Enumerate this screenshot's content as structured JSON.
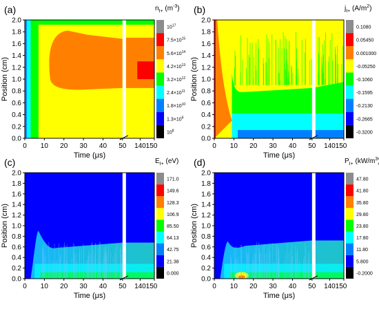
{
  "chart_data": [
    {
      "type": "heatmap",
      "panel_label": "(a)",
      "quantity_main": "n",
      "quantity_sub": "I+",
      "unit_text": " (m",
      "unit_sup": "-3",
      "unit_close": ")",
      "xlabel": "Time (μs)",
      "ylabel": "Position (cm)",
      "x_ticks_left": [
        "0",
        "10",
        "20",
        "30",
        "40",
        "50"
      ],
      "x_ticks_right": [
        "140",
        "150"
      ],
      "xlim_left": [
        0,
        50
      ],
      "xlim_right": [
        130,
        150
      ],
      "ylim": [
        0,
        2.0
      ],
      "y_ticks": [
        "0.0",
        "0.2",
        "0.4",
        "0.6",
        "0.8",
        "1.0",
        "1.2",
        "1.4",
        "1.6",
        "1.8",
        "2.0"
      ],
      "colorbar_labels": [
        {
          "m": "10",
          "e": "17"
        },
        {
          "m": "7.5×10",
          "e": "15"
        },
        {
          "m": "5.6×10",
          "e": "14"
        },
        {
          "m": "4.2×10",
          "e": "13"
        },
        {
          "m": "3.2×10",
          "e": "12"
        },
        {
          "m": "2.4×10",
          "e": "11"
        },
        {
          "m": "1.8×10",
          "e": "10"
        },
        {
          "m": "1.3×10",
          "e": "9"
        },
        {
          "m": "10",
          "e": "8"
        }
      ]
    },
    {
      "type": "heatmap",
      "panel_label": "(b)",
      "quantity_main": "j",
      "quantity_sub": "I+",
      "unit_text": " (A/m",
      "unit_sup": "2",
      "unit_close": ")",
      "xlabel": "Time (μs)",
      "ylabel": "Position (cm)",
      "x_ticks_left": [
        "0",
        "10",
        "20",
        "30",
        "40",
        "50"
      ],
      "x_ticks_right": [
        "140",
        "150"
      ],
      "xlim_left": [
        0,
        50
      ],
      "xlim_right": [
        130,
        150
      ],
      "ylim": [
        0,
        2.0
      ],
      "y_ticks": [
        "0.0",
        "0.2",
        "0.4",
        "0.6",
        "0.8",
        "1.0",
        "1.2",
        "1.4",
        "1.6",
        "1.8",
        "2.0"
      ],
      "colorbar_labels": [
        {
          "m": "0.1080",
          "e": ""
        },
        {
          "m": "0.05450",
          "e": ""
        },
        {
          "m": "0.001000",
          "e": ""
        },
        {
          "m": "-0.05250",
          "e": ""
        },
        {
          "m": "-0.1060",
          "e": ""
        },
        {
          "m": "-0.1595",
          "e": ""
        },
        {
          "m": "-0.2130",
          "e": ""
        },
        {
          "m": "-0.2665",
          "e": ""
        },
        {
          "m": "-0.3200",
          "e": ""
        }
      ]
    },
    {
      "type": "heatmap",
      "panel_label": "(c)",
      "quantity_main": "E",
      "quantity_sub": "I+",
      "unit_text": " (eV)",
      "unit_sup": "",
      "unit_close": "",
      "xlabel": "Time (μs)",
      "ylabel": "Position (cm)",
      "x_ticks_left": [
        "0",
        "10",
        "20",
        "30",
        "40",
        "50"
      ],
      "x_ticks_right": [
        "140",
        "150"
      ],
      "xlim_left": [
        0,
        50
      ],
      "xlim_right": [
        130,
        150
      ],
      "ylim": [
        0,
        2.0
      ],
      "y_ticks": [
        "0.0",
        "0.2",
        "0.4",
        "0.6",
        "0.8",
        "1.0",
        "1.2",
        "1.4",
        "1.6",
        "1.8",
        "2.0"
      ],
      "colorbar_labels": [
        {
          "m": "171.0",
          "e": ""
        },
        {
          "m": "149.6",
          "e": ""
        },
        {
          "m": "128.3",
          "e": ""
        },
        {
          "m": "106.9",
          "e": ""
        },
        {
          "m": "85.50",
          "e": ""
        },
        {
          "m": "64.13",
          "e": ""
        },
        {
          "m": "42.75",
          "e": ""
        },
        {
          "m": "21.38",
          "e": ""
        },
        {
          "m": "0.000",
          "e": ""
        }
      ]
    },
    {
      "type": "heatmap",
      "panel_label": "(d)",
      "quantity_main": "P",
      "quantity_sub": "I+",
      "unit_text": " (kW/m",
      "unit_sup": "3",
      "unit_close": ")",
      "xlabel": "Time (μs)",
      "ylabel": "Position (cm)",
      "x_ticks_left": [
        "0",
        "10",
        "20",
        "30",
        "40",
        "50"
      ],
      "x_ticks_right": [
        "140",
        "150"
      ],
      "xlim_left": [
        0,
        50
      ],
      "xlim_right": [
        130,
        150
      ],
      "ylim": [
        0,
        2.0
      ],
      "y_ticks": [
        "0.0",
        "0.2",
        "0.4",
        "0.6",
        "0.8",
        "1.0",
        "1.2",
        "1.4",
        "1.6",
        "1.8",
        "2.0"
      ],
      "colorbar_labels": [
        {
          "m": "47.80",
          "e": ""
        },
        {
          "m": "41.80",
          "e": ""
        },
        {
          "m": "35.80",
          "e": ""
        },
        {
          "m": "29.80",
          "e": ""
        },
        {
          "m": "23.80",
          "e": ""
        },
        {
          "m": "17.80",
          "e": ""
        },
        {
          "m": "11.80",
          "e": ""
        },
        {
          "m": "5.800",
          "e": ""
        },
        {
          "m": "-0.2000",
          "e": ""
        }
      ]
    }
  ],
  "colorbar_colors": [
    "#8c8c8c",
    "#ff0000",
    "#ff8000",
    "#ffff00",
    "#00ff00",
    "#00ffff",
    "#0080ff",
    "#0000ff",
    "#000000"
  ]
}
